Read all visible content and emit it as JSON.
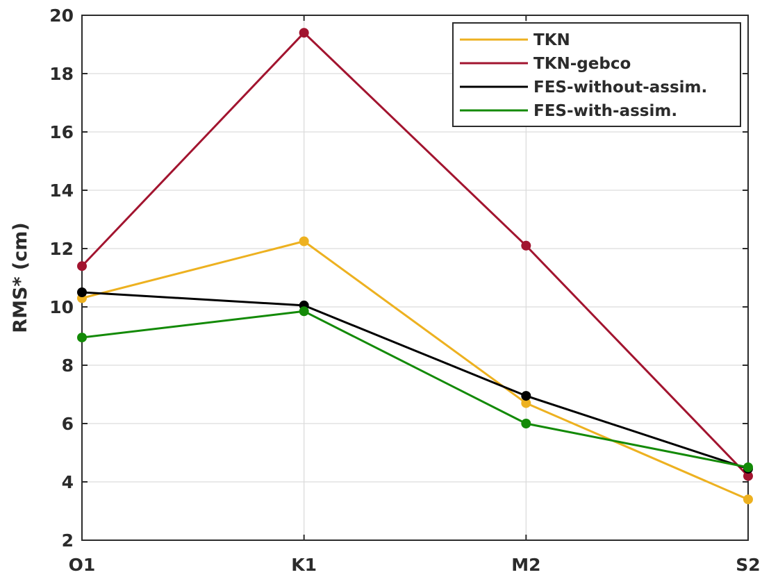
{
  "chart_data": {
    "type": "line",
    "title": "",
    "xlabel": "",
    "ylabel": "RMS* (cm)",
    "categories": [
      "O1",
      "K1",
      "M2",
      "S2"
    ],
    "ylim": [
      2,
      20
    ],
    "yticks": [
      2,
      4,
      6,
      8,
      10,
      12,
      14,
      16,
      18,
      20
    ],
    "grid": true,
    "legend_position": "top-right",
    "series": [
      {
        "name": "TKN",
        "color": "#EDB120",
        "values": [
          10.3,
          12.25,
          6.7,
          3.4
        ]
      },
      {
        "name": "TKN-gebco",
        "color": "#A2142F",
        "values": [
          11.4,
          19.4,
          12.1,
          4.2
        ]
      },
      {
        "name": "FES-without-assim.",
        "color": "#000000",
        "values": [
          10.5,
          10.05,
          6.95,
          4.45
        ]
      },
      {
        "name": "FES-with-assim.",
        "color": "#138A07",
        "values": [
          8.95,
          9.85,
          6.0,
          4.5
        ]
      }
    ]
  }
}
